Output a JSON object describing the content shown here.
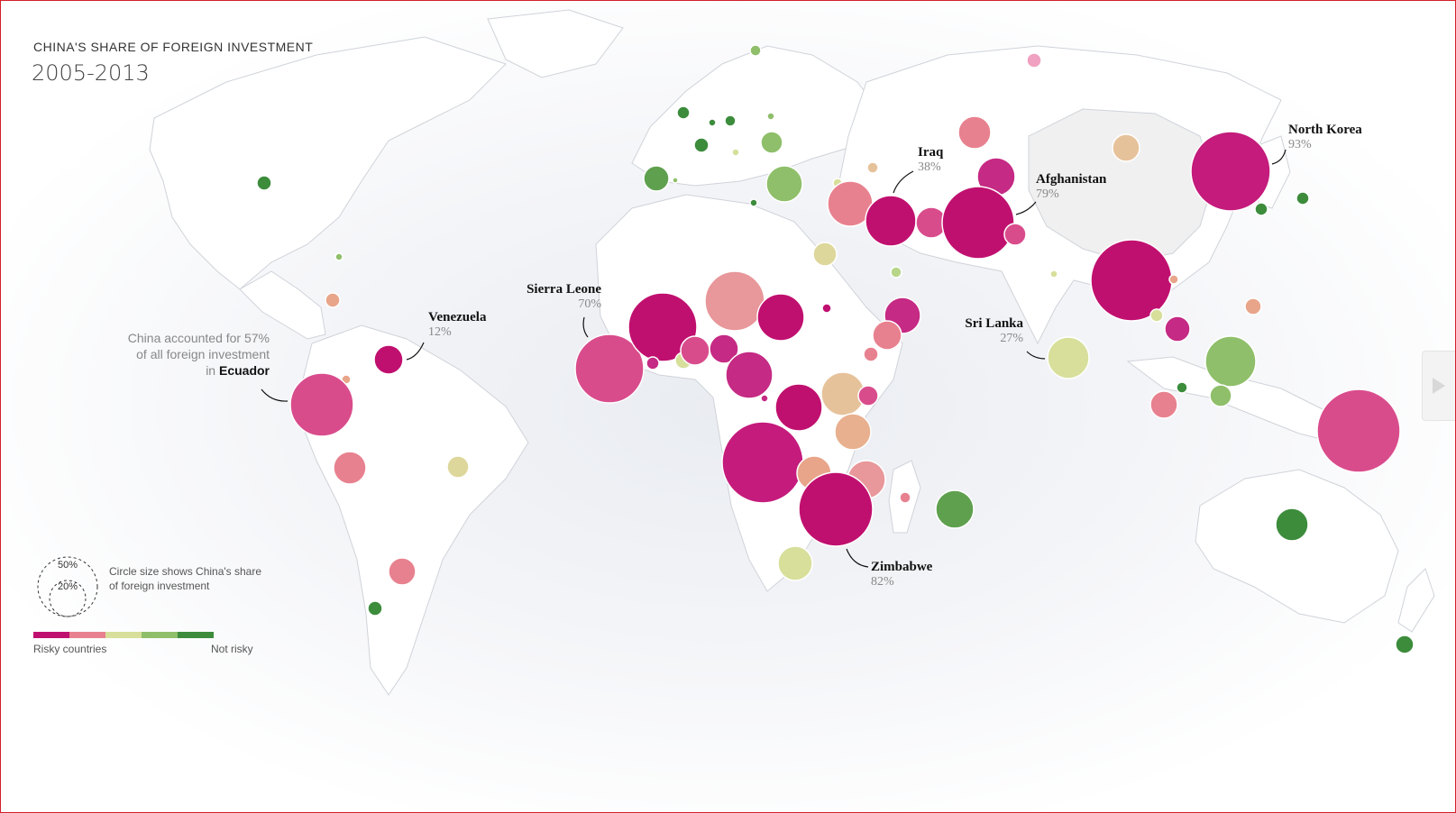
{
  "title": "CHINA'S SHARE OF FOREIGN INVESTMENT",
  "subtitle": "2005-2013",
  "colors": {
    "risky_1": "#c0106f",
    "risky_2": "#d94c8c",
    "mid_risky": "#e8818f",
    "neutral": "#e6c29b",
    "mid_safe": "#d7df9b",
    "safe_1": "#8fbf6a",
    "safe_2": "#3c8c3c"
  },
  "annotations": {
    "ecuador_note_pre": "China accounted for 57% of all foreign investment in ",
    "ecuador_note_country": "Ecuador",
    "venezuela": {
      "name": "Venezuela",
      "pct": "12%"
    },
    "sierra_leone": {
      "name": "Sierra Leone",
      "pct": "70%"
    },
    "iraq": {
      "name": "Iraq",
      "pct": "38%"
    },
    "afghanistan": {
      "name": "Afghanistan",
      "pct": "79%"
    },
    "sri_lanka": {
      "name": "Sri Lanka",
      "pct": "27%"
    },
    "north_korea": {
      "name": "North Korea",
      "pct": "93%"
    },
    "zimbabwe": {
      "name": "Zimbabwe",
      "pct": "82%"
    }
  },
  "legend": {
    "size_50": "50%",
    "size_20": "20%",
    "size_text": "Circle size shows China's share of foreign investment",
    "risky_label": "Risky countries",
    "safe_label": "Not risky",
    "scale_colors": [
      "#c0106f",
      "#e8818f",
      "#d7df9b",
      "#8fbf6a",
      "#3c8c3c"
    ]
  },
  "nav": {
    "next_icon": "chevron-right-icon"
  }
}
